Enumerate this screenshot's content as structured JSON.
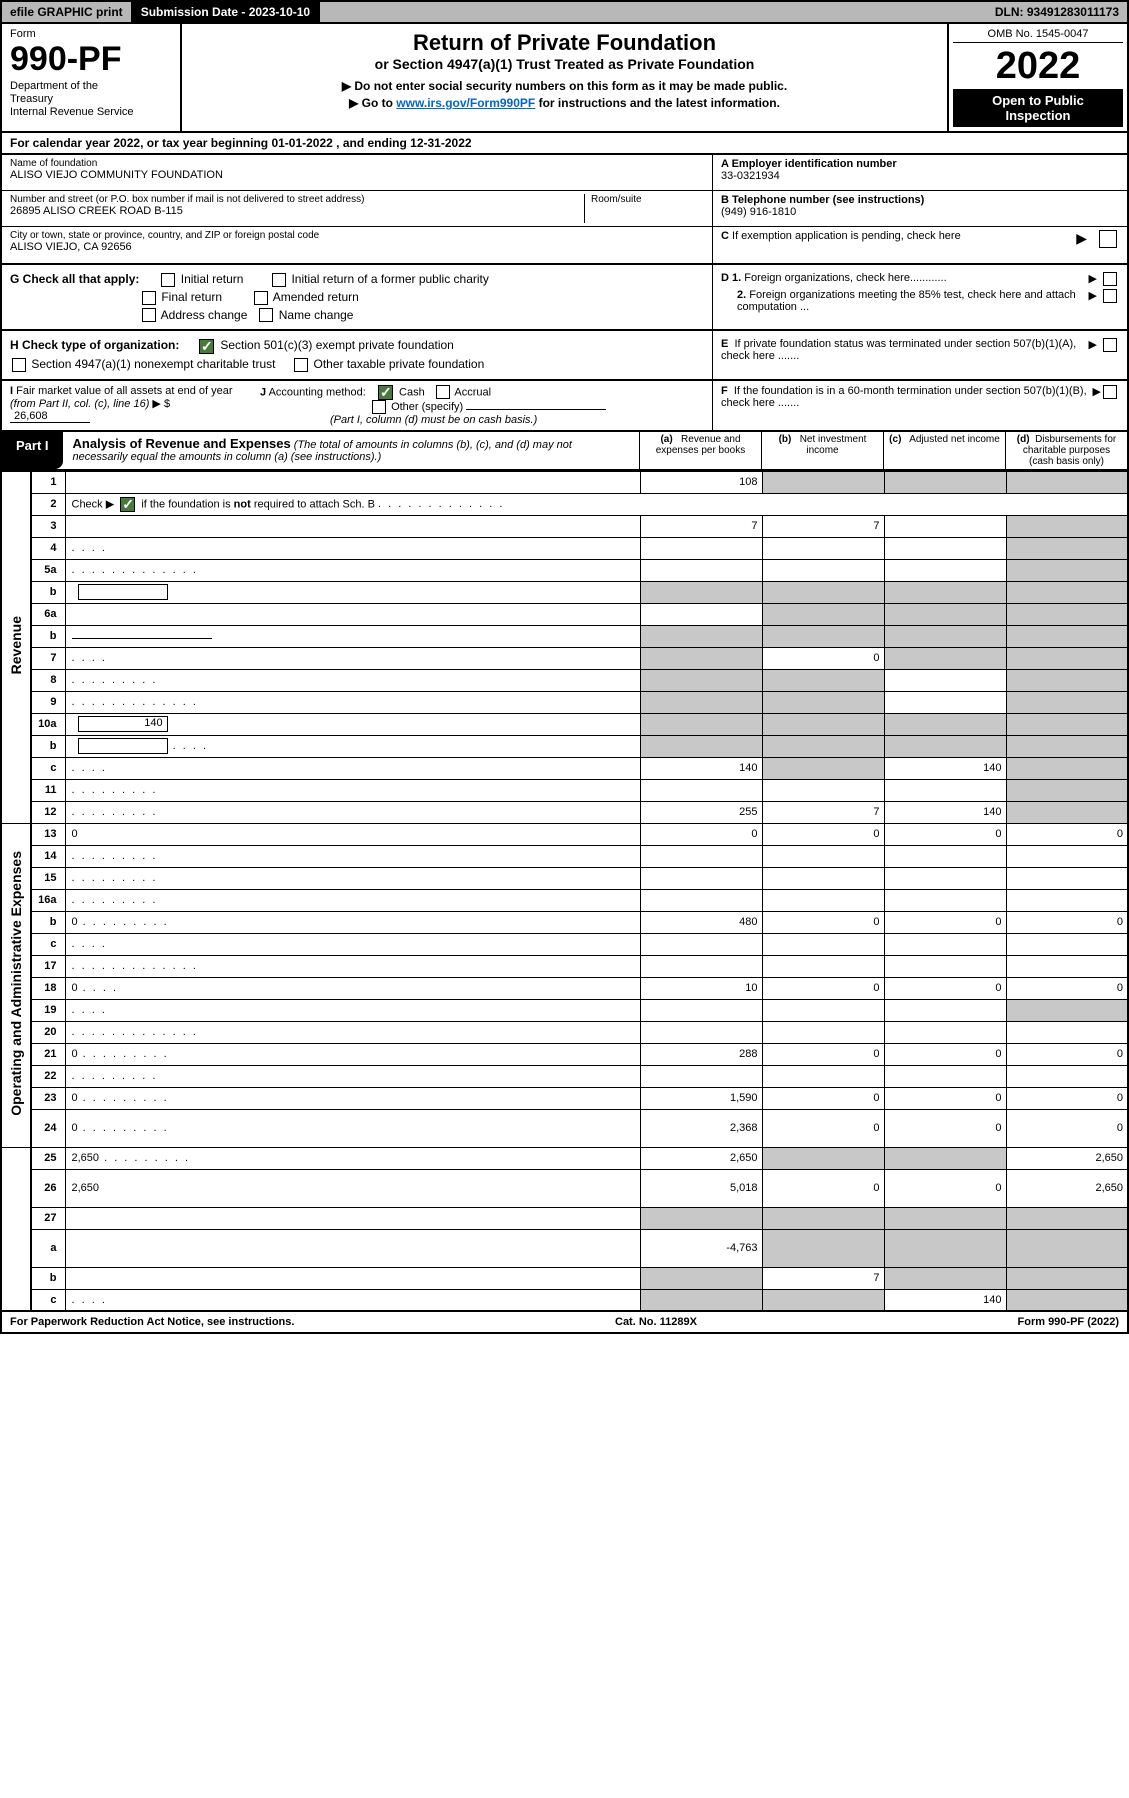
{
  "topbar": {
    "efile": "efile GRAPHIC print",
    "submission": "Submission Date - 2023-10-10",
    "dln": "DLN: 93491283011173"
  },
  "header": {
    "form_label": "Form",
    "form_number": "990-PF",
    "dept": "Department of the Treasury\nInternal Revenue Service",
    "title": "Return of Private Foundation",
    "subtitle": "or Section 4947(a)(1) Trust Treated as Private Foundation",
    "instr1": "▶ Do not enter social security numbers on this form as it may be made public.",
    "instr2_pre": "▶ Go to ",
    "instr2_link": "www.irs.gov/Form990PF",
    "instr2_post": " for instructions and the latest information.",
    "omb": "OMB No. 1545-0047",
    "year": "2022",
    "open": "Open to Public Inspection"
  },
  "calyear": "For calendar year 2022, or tax year beginning 01-01-2022                       , and ending 12-31-2022",
  "info": {
    "name_lbl": "Name of foundation",
    "name": "ALISO VIEJO COMMUNITY FOUNDATION",
    "addr_lbl": "Number and street (or P.O. box number if mail is not delivered to street address)",
    "addr": "26895 ALISO CREEK ROAD B-115",
    "room_lbl": "Room/suite",
    "city_lbl": "City or town, state or province, country, and ZIP or foreign postal code",
    "city": "ALISO VIEJO, CA  92656",
    "a_lbl": "A Employer identification number",
    "a_val": "33-0321934",
    "b_lbl": "B Telephone number (see instructions)",
    "b_val": "(949) 916-1810",
    "c_lbl": "C If exemption application is pending, check here"
  },
  "checks": {
    "g_lbl": "G Check all that apply:",
    "g_opts": [
      "Initial return",
      "Final return",
      "Address change",
      "Initial return of a former public charity",
      "Amended return",
      "Name change"
    ],
    "h_lbl": "H Check type of organization:",
    "h_opt1": "Section 501(c)(3) exempt private foundation",
    "h_opt2": "Section 4947(a)(1) nonexempt charitable trust",
    "h_opt3": "Other taxable private foundation",
    "d1": "D 1. Foreign organizations, check here............",
    "d2": "2. Foreign organizations meeting the 85% test, check here and attach computation ...",
    "e": "E  If private foundation status was terminated under section 507(b)(1)(A), check here .......",
    "i_lbl": "I Fair market value of all assets at end of year (from Part II, col. (c), line 16)",
    "i_val": "26,608",
    "j_lbl": "J Accounting method:",
    "j_cash": "Cash",
    "j_accrual": "Accrual",
    "j_other": "Other (specify)",
    "j_note": "(Part I, column (d) must be on cash basis.)",
    "f": "F  If the foundation is in a 60-month termination under section 507(b)(1)(B), check here ......."
  },
  "part1": {
    "tab": "Part I",
    "title_b": "Analysis of Revenue and Expenses",
    "title_rest": " (The total of amounts in columns (b), (c), and (d) may not necessarily equal the amounts in column (a) (see instructions).)",
    "col_a": "(a)   Revenue and expenses per books",
    "col_b": "(b)   Net investment income",
    "col_c": "(c)   Adjusted net income",
    "col_d": "(d)  Disbursements for charitable purposes (cash basis only)"
  },
  "side_labels": {
    "revenue": "Revenue",
    "expenses": "Operating and Administrative Expenses"
  },
  "rows": [
    {
      "n": "1",
      "d": "",
      "a": "108",
      "b": "",
      "c": "",
      "shade": [
        "b",
        "c",
        "d"
      ]
    },
    {
      "n": "2",
      "d": "",
      "a": "",
      "b": "",
      "c": "",
      "merge": true
    },
    {
      "n": "3",
      "d": "",
      "a": "7",
      "b": "7",
      "c": "",
      "shade": [
        "d"
      ]
    },
    {
      "n": "4",
      "d": "",
      "a": "",
      "b": "",
      "c": "",
      "dots": "short",
      "shade": [
        "d"
      ]
    },
    {
      "n": "5a",
      "d": "",
      "a": "",
      "b": "",
      "c": "",
      "dots": "long",
      "shade": [
        "d"
      ]
    },
    {
      "n": "b",
      "d": "",
      "a": "",
      "b": "",
      "c": "",
      "has_box": true,
      "shade": [
        "a",
        "b",
        "c",
        "d"
      ]
    },
    {
      "n": "6a",
      "d": "",
      "a": "",
      "b": "",
      "c": "",
      "shade": [
        "b",
        "c",
        "d"
      ]
    },
    {
      "n": "b",
      "d": "",
      "a": "",
      "b": "",
      "c": "",
      "has_underline": true,
      "shade": [
        "a",
        "b",
        "c",
        "d"
      ]
    },
    {
      "n": "7",
      "d": "",
      "a": "",
      "b": "0",
      "c": "",
      "dots": "short",
      "shade": [
        "a",
        "c",
        "d"
      ]
    },
    {
      "n": "8",
      "d": "",
      "a": "",
      "b": "",
      "c": "",
      "dots": "med",
      "shade": [
        "a",
        "b",
        "d"
      ]
    },
    {
      "n": "9",
      "d": "",
      "a": "",
      "b": "",
      "c": "",
      "dots": "long",
      "shade": [
        "a",
        "b",
        "d"
      ]
    },
    {
      "n": "10a",
      "d": "",
      "a": "",
      "b": "",
      "c": "",
      "box_val": "140",
      "shade": [
        "a",
        "b",
        "c",
        "d"
      ]
    },
    {
      "n": "b",
      "d": "",
      "a": "",
      "b": "",
      "c": "",
      "dots": "short",
      "has_box": true,
      "shade": [
        "a",
        "b",
        "c",
        "d"
      ]
    },
    {
      "n": "c",
      "d": "",
      "a": "140",
      "b": "",
      "c": "140",
      "dots": "short",
      "shade": [
        "b",
        "d"
      ]
    },
    {
      "n": "11",
      "d": "",
      "a": "",
      "b": "",
      "c": "",
      "dots": "med",
      "shade": [
        "d"
      ]
    },
    {
      "n": "12",
      "d": "",
      "a": "255",
      "b": "7",
      "c": "140",
      "dots": "med",
      "shade": [
        "d"
      ]
    },
    {
      "n": "13",
      "d": "0",
      "a": "0",
      "b": "0",
      "c": "0"
    },
    {
      "n": "14",
      "d": "",
      "a": "",
      "b": "",
      "c": "",
      "dots": "med"
    },
    {
      "n": "15",
      "d": "",
      "a": "",
      "b": "",
      "c": "",
      "dots": "med"
    },
    {
      "n": "16a",
      "d": "",
      "a": "",
      "b": "",
      "c": "",
      "dots": "med"
    },
    {
      "n": "b",
      "d": "0",
      "a": "480",
      "b": "0",
      "c": "0",
      "dots": "med"
    },
    {
      "n": "c",
      "d": "",
      "a": "",
      "b": "",
      "c": "",
      "dots": "short"
    },
    {
      "n": "17",
      "d": "",
      "a": "",
      "b": "",
      "c": "",
      "dots": "long"
    },
    {
      "n": "18",
      "d": "0",
      "a": "10",
      "b": "0",
      "c": "0",
      "dots": "short"
    },
    {
      "n": "19",
      "d": "",
      "a": "",
      "b": "",
      "c": "",
      "dots": "short",
      "shade": [
        "d"
      ]
    },
    {
      "n": "20",
      "d": "",
      "a": "",
      "b": "",
      "c": "",
      "dots": "long"
    },
    {
      "n": "21",
      "d": "0",
      "a": "288",
      "b": "0",
      "c": "0",
      "dots": "med"
    },
    {
      "n": "22",
      "d": "",
      "a": "",
      "b": "",
      "c": "",
      "dots": "med"
    },
    {
      "n": "23",
      "d": "0",
      "a": "1,590",
      "b": "0",
      "c": "0",
      "dots": "med"
    },
    {
      "n": "24",
      "d": "0",
      "a": "2,368",
      "b": "0",
      "c": "0",
      "dots": "med",
      "tall": true
    },
    {
      "n": "25",
      "d": "2,650",
      "a": "2,650",
      "b": "",
      "c": "",
      "dots": "med",
      "shade": [
        "b",
        "c"
      ]
    },
    {
      "n": "26",
      "d": "2,650",
      "a": "5,018",
      "b": "0",
      "c": "0",
      "tall": true
    },
    {
      "n": "27",
      "d": "",
      "a": "",
      "b": "",
      "c": "",
      "shade": [
        "a",
        "b",
        "c",
        "d"
      ]
    },
    {
      "n": "a",
      "d": "",
      "a": "-4,763",
      "b": "",
      "c": "",
      "shade": [
        "b",
        "c",
        "d"
      ],
      "tall": true
    },
    {
      "n": "b",
      "d": "",
      "a": "",
      "b": "7",
      "c": "",
      "shade": [
        "a",
        "c",
        "d"
      ]
    },
    {
      "n": "c",
      "d": "",
      "a": "",
      "b": "",
      "c": "140",
      "dots": "short",
      "shade": [
        "a",
        "b",
        "d"
      ]
    }
  ],
  "footer": {
    "left": "For Paperwork Reduction Act Notice, see instructions.",
    "mid": "Cat. No. 11289X",
    "right": "Form 990-PF (2022)"
  }
}
